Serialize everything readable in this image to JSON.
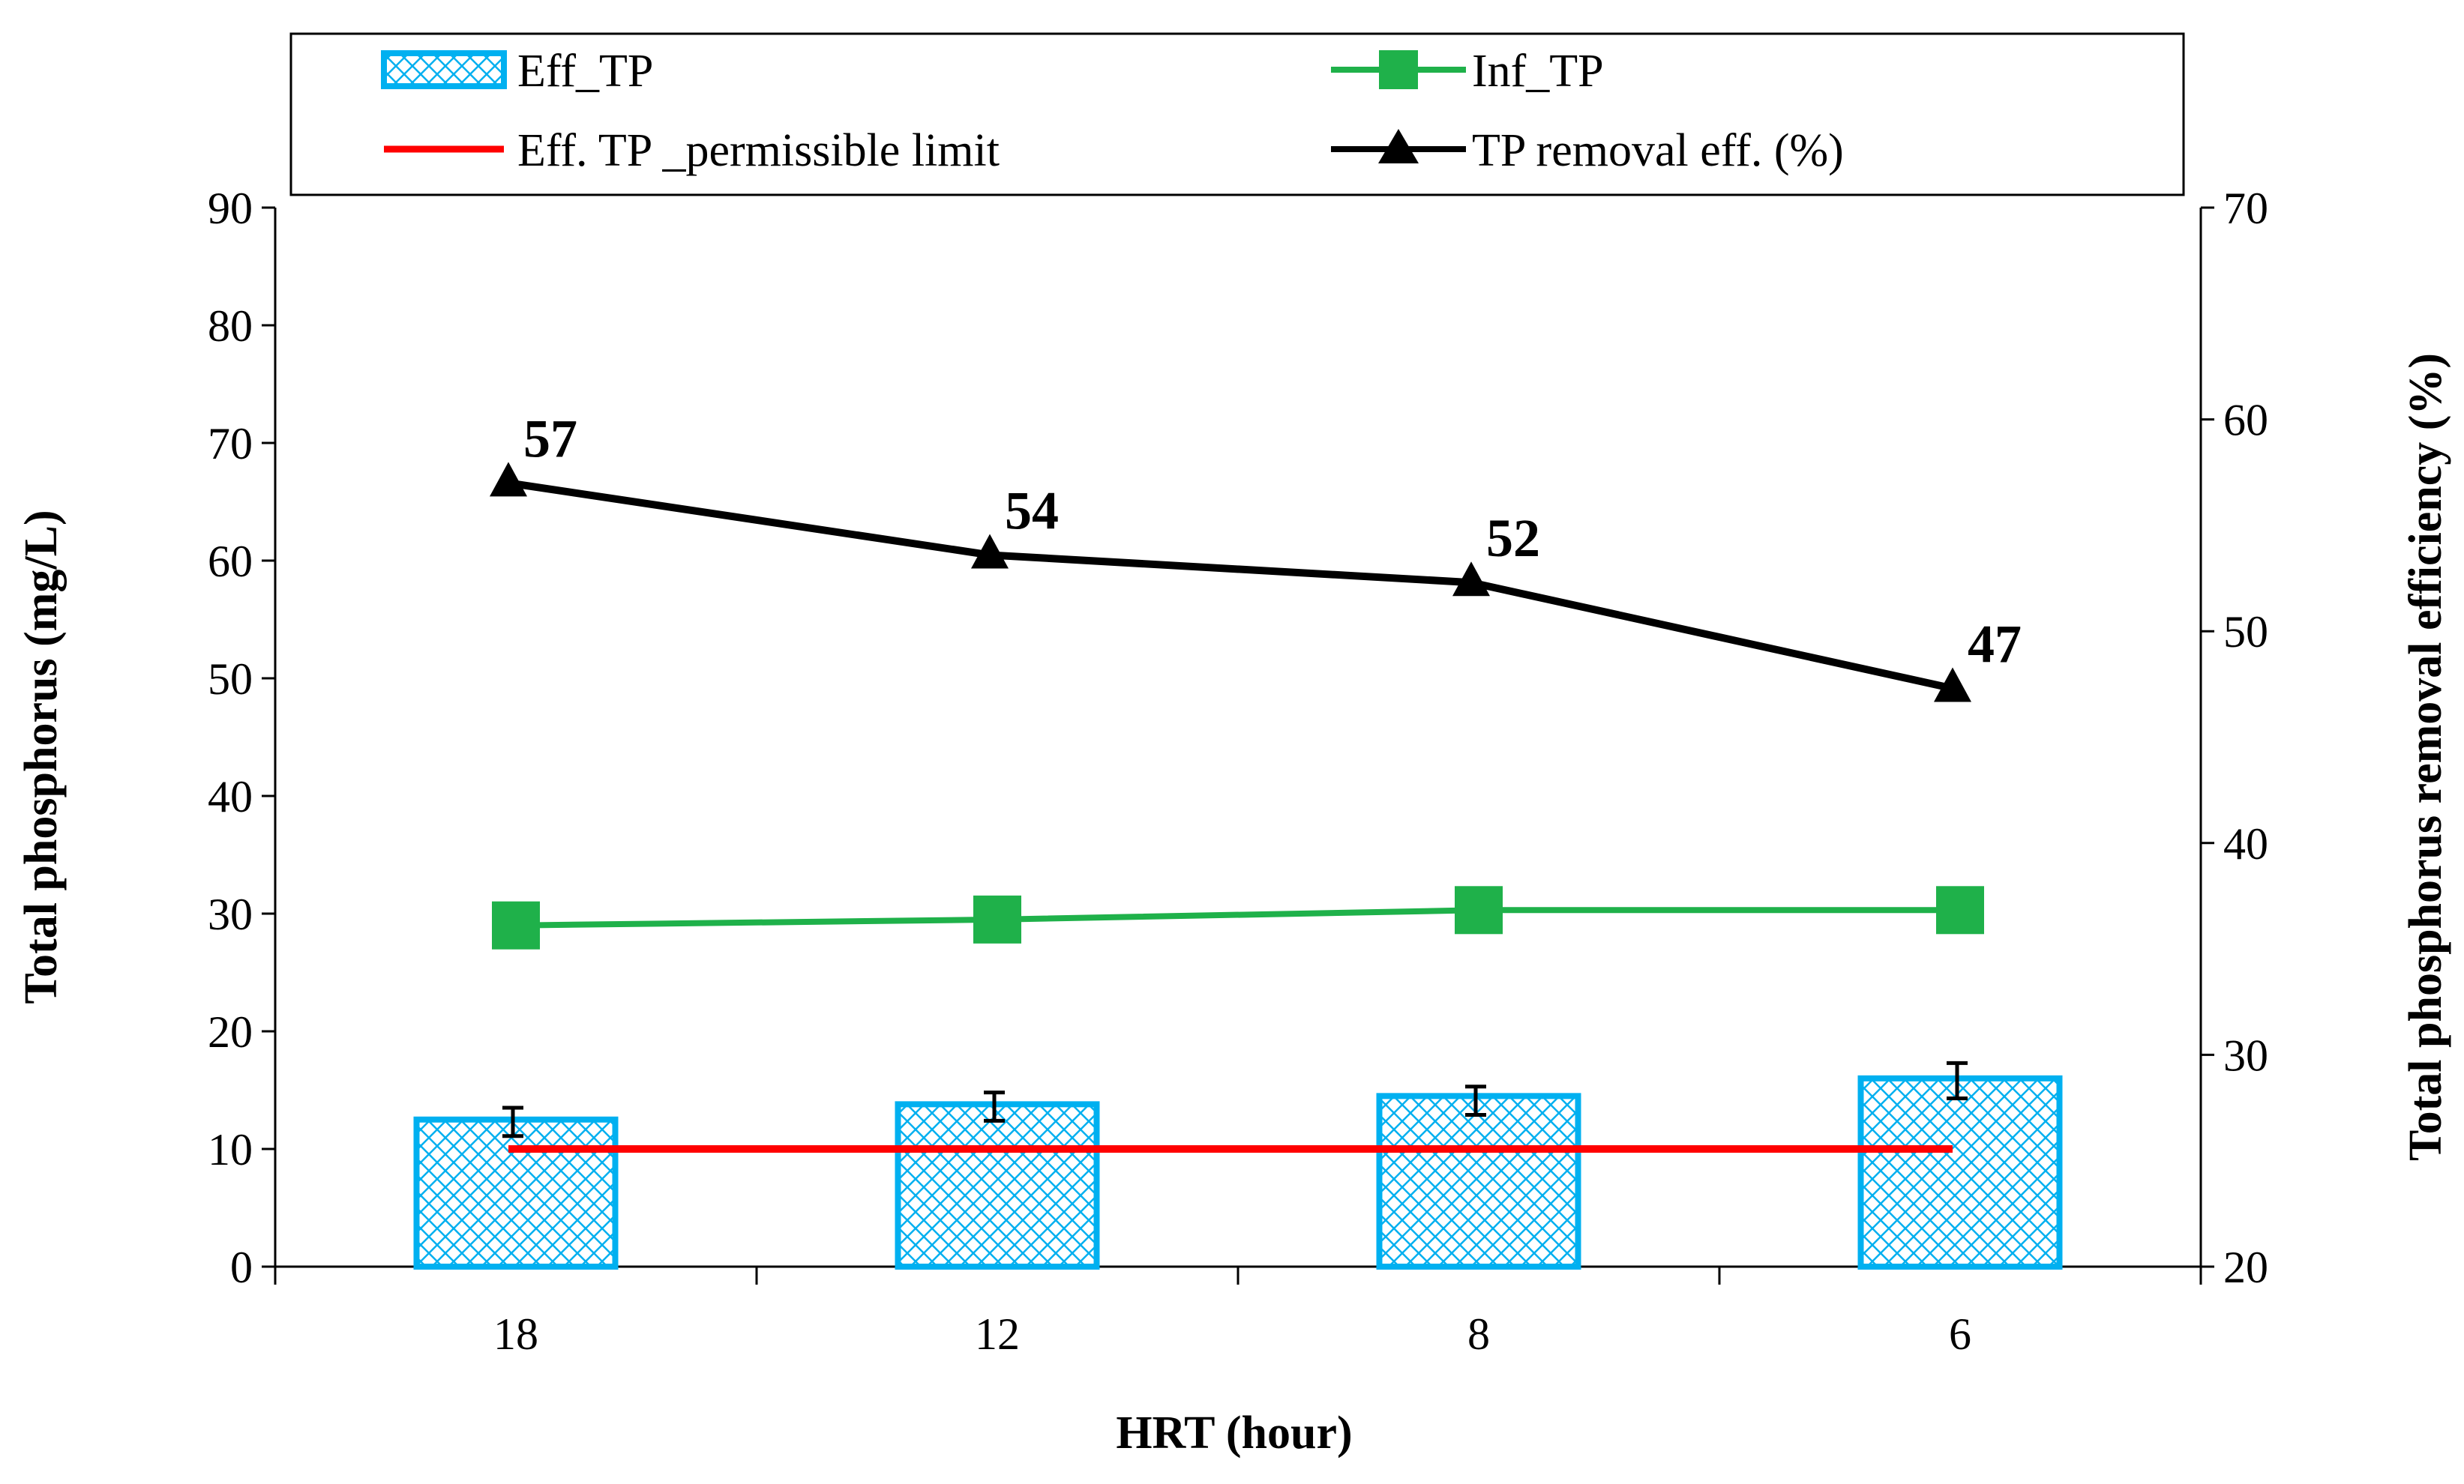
{
  "chart_data": {
    "type": "bar",
    "categories": [
      "18",
      "12",
      "8",
      "6"
    ],
    "xlabel": "HRT (hour)",
    "ylabel_left": "Total phosphorus (mg/L)",
    "ylabel_right": "Total  phosphorus removal efficiency (%)",
    "ylim_left": [
      0,
      90
    ],
    "yticks_left": [
      "0",
      "10",
      "20",
      "30",
      "40",
      "50",
      "60",
      "70",
      "80",
      "90"
    ],
    "ylim_right": [
      20,
      70
    ],
    "yticks_right": [
      "20",
      "30",
      "40",
      "50",
      "60",
      "70"
    ],
    "legend": {
      "position": "top",
      "entries": [
        "Eff_TP",
        "Inf_TP",
        "Eff. TP _permissible limit",
        "TP removal eff. (%)"
      ]
    },
    "series": [
      {
        "name": "Eff_TP",
        "kind": "bar",
        "axis": "left",
        "color": "#00B0F0",
        "values": [
          12.5,
          13.8,
          14.5,
          16.0
        ],
        "errors": [
          1.2,
          1.2,
          1.2,
          1.5
        ],
        "error_centers": [
          12.3,
          13.6,
          14.1,
          15.8
        ]
      },
      {
        "name": "Inf_TP",
        "kind": "line",
        "marker": "square",
        "axis": "left",
        "color": "#1FB14A",
        "values": [
          29.0,
          29.5,
          30.3,
          30.3
        ]
      },
      {
        "name": "Eff. TP _permissible limit",
        "kind": "line",
        "axis": "left",
        "color": "#FF0000",
        "values": [
          10,
          10,
          10,
          10
        ]
      },
      {
        "name": "TP removal eff. (%)",
        "kind": "line",
        "marker": "triangle",
        "axis": "right",
        "color": "#000000",
        "values": [
          57,
          53.6,
          52.3,
          47.3
        ],
        "labels": [
          "57",
          "54",
          "52",
          "47"
        ]
      }
    ]
  }
}
